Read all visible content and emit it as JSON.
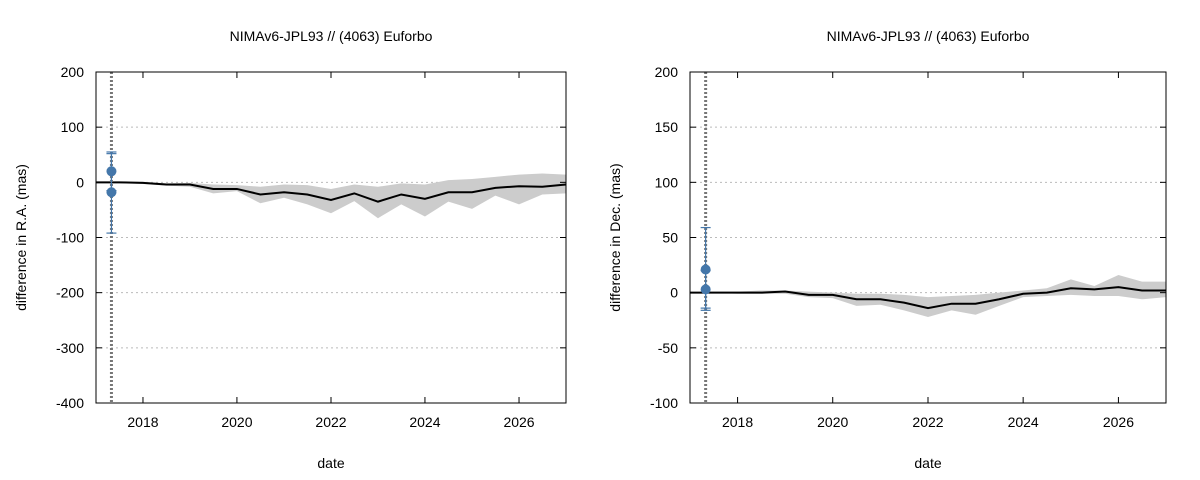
{
  "colors": {
    "band": "#cccccc",
    "line": "#000000",
    "marker": "#4477aa",
    "errorbar": "#4477aa",
    "grid": "#bbbbbb",
    "vline": "#777777"
  },
  "chart_data": [
    {
      "type": "line",
      "title": "NIMAv6-JPL93 // (4063) Euforbo",
      "xlabel": "date",
      "ylabel": "difference in R.A. (mas)",
      "xlim": [
        "2017-01-01",
        "2027-01-01"
      ],
      "ylim": [
        -400,
        200
      ],
      "xticks": [
        {
          "label": "2018",
          "date": "2018-01-01"
        },
        {
          "label": "2020",
          "date": "2020-01-01"
        },
        {
          "label": "2022",
          "date": "2022-01-01"
        },
        {
          "label": "2024",
          "date": "2024-01-01"
        },
        {
          "label": "2026",
          "date": "2026-01-01"
        }
      ],
      "yticks": [
        200,
        100,
        0,
        -100,
        -200,
        -300,
        -400
      ],
      "ytick_labels": [
        "200",
        "100",
        "0",
        "-100",
        "-200",
        "-300",
        "-400"
      ],
      "grid": "horizontal dashed",
      "vertical_marker_date": "2017-05-01",
      "mean_curve": {
        "x": [
          "2017-01-01",
          "2017-07-01",
          "2018-01-01",
          "2018-07-01",
          "2019-01-01",
          "2019-07-01",
          "2020-01-01",
          "2020-07-01",
          "2021-01-01",
          "2021-07-01",
          "2022-01-01",
          "2022-07-01",
          "2023-01-01",
          "2023-07-01",
          "2024-01-01",
          "2024-07-01",
          "2025-01-01",
          "2025-07-01",
          "2026-01-01",
          "2026-07-01",
          "2027-01-01"
        ],
        "y": [
          0,
          0,
          -1,
          -4,
          -4,
          -12,
          -12,
          -22,
          -18,
          -22,
          -32,
          -20,
          -35,
          -22,
          -30,
          -18,
          -18,
          -10,
          -7,
          -8,
          -4
        ]
      },
      "uncertainty_band": {
        "x": [
          "2017-01-01",
          "2017-07-01",
          "2018-01-01",
          "2018-07-01",
          "2019-01-01",
          "2019-07-01",
          "2020-01-01",
          "2020-07-01",
          "2021-01-01",
          "2021-07-01",
          "2022-01-01",
          "2022-07-01",
          "2023-01-01",
          "2023-07-01",
          "2024-01-01",
          "2024-07-01",
          "2025-01-01",
          "2025-07-01",
          "2026-01-01",
          "2026-07-01",
          "2027-01-01"
        ],
        "lower": [
          0,
          -1,
          -3,
          -6,
          -8,
          -20,
          -16,
          -38,
          -28,
          -40,
          -56,
          -34,
          -65,
          -40,
          -62,
          -35,
          -48,
          -24,
          -40,
          -22,
          -20
        ],
        "upper": [
          0,
          1,
          1,
          -2,
          -1,
          -4,
          -5,
          -8,
          -4,
          -5,
          -12,
          -4,
          -8,
          -2,
          -4,
          4,
          6,
          10,
          14,
          16,
          14
        ]
      },
      "observations": [
        {
          "date": "2017-05-01",
          "value": 20,
          "err_low": -15,
          "err_high": 55
        },
        {
          "date": "2017-05-01",
          "value": -18,
          "err_low": -92,
          "err_high": 52
        }
      ]
    },
    {
      "type": "line",
      "title": "NIMAv6-JPL93 // (4063) Euforbo",
      "xlabel": "date",
      "ylabel": "difference in Dec. (mas)",
      "xlim": [
        "2017-01-01",
        "2027-01-01"
      ],
      "ylim": [
        -100,
        200
      ],
      "xticks": [
        {
          "label": "2018",
          "date": "2018-01-01"
        },
        {
          "label": "2020",
          "date": "2020-01-01"
        },
        {
          "label": "2022",
          "date": "2022-01-01"
        },
        {
          "label": "2024",
          "date": "2024-01-01"
        },
        {
          "label": "2026",
          "date": "2026-01-01"
        }
      ],
      "yticks": [
        200,
        150,
        100,
        50,
        0,
        -50,
        -100
      ],
      "ytick_labels": [
        "200",
        "150",
        "100",
        "50",
        "0",
        "-50",
        "-100"
      ],
      "grid": "horizontal dashed",
      "vertical_marker_date": "2017-05-01",
      "mean_curve": {
        "x": [
          "2017-01-01",
          "2017-07-01",
          "2018-01-01",
          "2018-07-01",
          "2019-01-01",
          "2019-07-01",
          "2020-01-01",
          "2020-07-01",
          "2021-01-01",
          "2021-07-01",
          "2022-01-01",
          "2022-07-01",
          "2023-01-01",
          "2023-07-01",
          "2024-01-01",
          "2024-07-01",
          "2025-01-01",
          "2025-07-01",
          "2026-01-01",
          "2026-07-01",
          "2027-01-01"
        ],
        "y": [
          0,
          0,
          0,
          0,
          1,
          -2,
          -2,
          -6,
          -6,
          -9,
          -14,
          -10,
          -10,
          -6,
          -1,
          0,
          4,
          3,
          5,
          2,
          2
        ]
      },
      "uncertainty_band": {
        "x": [
          "2017-01-01",
          "2017-07-01",
          "2018-01-01",
          "2018-07-01",
          "2019-01-01",
          "2019-07-01",
          "2020-01-01",
          "2020-07-01",
          "2021-01-01",
          "2021-07-01",
          "2022-01-01",
          "2022-07-01",
          "2023-01-01",
          "2023-07-01",
          "2024-01-01",
          "2024-07-01",
          "2025-01-01",
          "2025-07-01",
          "2026-01-01",
          "2026-07-01",
          "2027-01-01"
        ],
        "lower": [
          0,
          0,
          -1,
          -1,
          -1,
          -4,
          -5,
          -12,
          -11,
          -16,
          -22,
          -16,
          -20,
          -12,
          -4,
          -3,
          -2,
          -3,
          -3,
          -6,
          -4
        ],
        "upper": [
          0,
          1,
          1,
          2,
          2,
          1,
          0,
          -1,
          -1,
          -2,
          -4,
          -3,
          -2,
          0,
          2,
          4,
          12,
          6,
          16,
          10,
          10
        ]
      },
      "observations": [
        {
          "date": "2017-05-01",
          "value": 21,
          "err_low": -16,
          "err_high": 59
        },
        {
          "date": "2017-05-01",
          "value": 3,
          "err_low": -14,
          "err_high": 20
        }
      ]
    }
  ]
}
